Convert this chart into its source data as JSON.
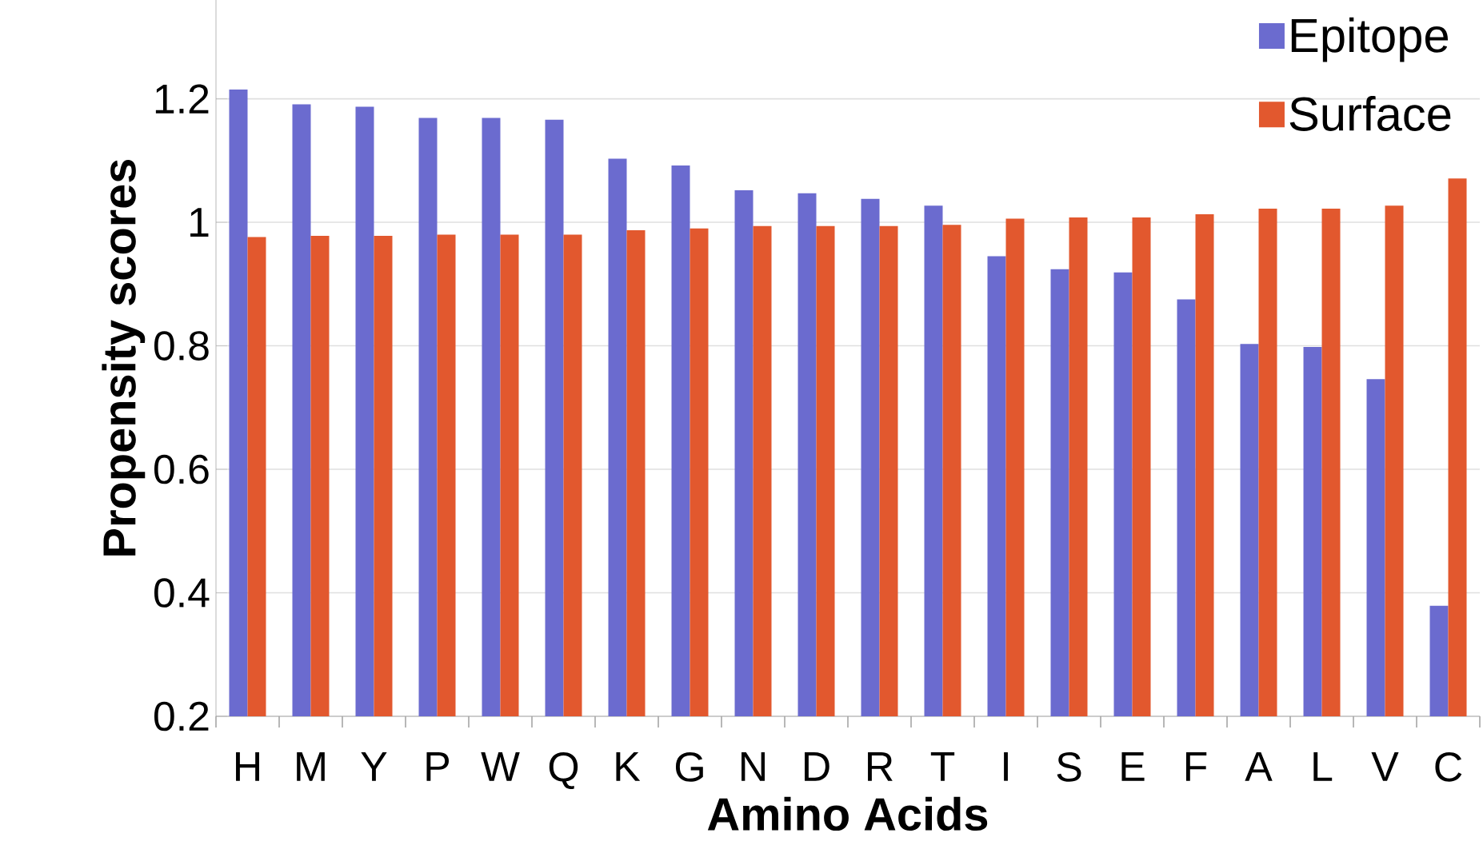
{
  "chart_data": {
    "type": "bar",
    "xlabel": "Amino Acids",
    "ylabel": "Propensity scores",
    "categories": [
      "H",
      "M",
      "Y",
      "P",
      "W",
      "Q",
      "K",
      "G",
      "N",
      "D",
      "R",
      "T",
      "I",
      "S",
      "E",
      "F",
      "A",
      "L",
      "V",
      "C"
    ],
    "series": [
      {
        "name": "Epitope",
        "color": "#6b6bcf",
        "values": [
          1.215,
          1.191,
          1.187,
          1.169,
          1.169,
          1.166,
          1.103,
          1.092,
          1.052,
          1.047,
          1.038,
          1.027,
          0.945,
          0.924,
          0.919,
          0.875,
          0.803,
          0.798,
          0.746,
          0.379
        ]
      },
      {
        "name": "Surface",
        "color": "#e2582e",
        "values": [
          0.976,
          0.978,
          0.978,
          0.98,
          0.98,
          0.98,
          0.987,
          0.99,
          0.994,
          0.994,
          0.994,
          0.996,
          1.006,
          1.008,
          1.008,
          1.013,
          1.022,
          1.022,
          1.027,
          1.071
        ]
      }
    ],
    "ylim": [
      0.2,
      1.36
    ],
    "yticks": [
      0.2,
      0.4,
      0.6,
      0.8,
      1,
      1.2
    ],
    "grid": "y",
    "legend": "top right"
  }
}
